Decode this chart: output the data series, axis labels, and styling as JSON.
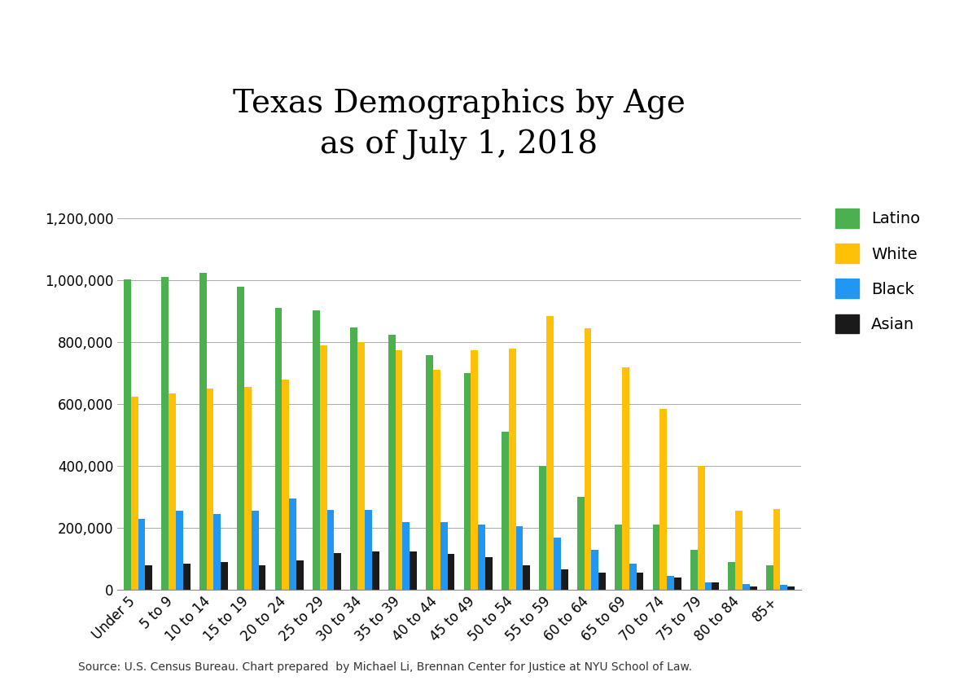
{
  "title": "Texas Demographics by Age\nas of July 1, 2018",
  "source_text": "Source: U.S. Census Bureau. Chart prepared  by Michael Li, Brennan Center for Justice at NYU School of Law.",
  "categories": [
    "Under 5",
    "5 to 9",
    "10 to 14",
    "15 to 19",
    "20 to 24",
    "25 to 29",
    "30 to 34",
    "35 to 39",
    "40 to 44",
    "45 to 49",
    "50 to 54",
    "55 to 59",
    "60 to 64",
    "65 to 69",
    "70 to 74",
    "75 to 79",
    "80 to 84",
    "85+"
  ],
  "series": {
    "Latino": [
      1002000,
      1012000,
      1025000,
      980000,
      910000,
      903000,
      848000,
      825000,
      758000,
      700000,
      510000,
      400000,
      300000,
      210000,
      210000,
      130000,
      90000,
      80000
    ],
    "White": [
      625000,
      635000,
      650000,
      655000,
      680000,
      790000,
      800000,
      775000,
      710000,
      775000,
      780000,
      885000,
      845000,
      720000,
      585000,
      400000,
      255000,
      260000
    ],
    "Black": [
      230000,
      255000,
      245000,
      255000,
      295000,
      258000,
      258000,
      220000,
      220000,
      210000,
      205000,
      170000,
      130000,
      85000,
      45000,
      25000,
      20000,
      15000
    ],
    "Asian": [
      80000,
      85000,
      90000,
      80000,
      95000,
      120000,
      125000,
      125000,
      115000,
      105000,
      80000,
      65000,
      55000,
      55000,
      40000,
      25000,
      10000,
      10000
    ]
  },
  "colors": {
    "Latino": "#4CAF50",
    "White": "#FFC107",
    "Black": "#2196F3",
    "Asian": "#1a1a1a"
  },
  "ylim": [
    0,
    1300000
  ],
  "yticks": [
    0,
    200000,
    400000,
    600000,
    800000,
    1000000,
    1200000
  ],
  "background_color": "#ffffff",
  "bar_width": 0.19,
  "title_fontsize": 28,
  "tick_fontsize": 12,
  "legend_fontsize": 14,
  "source_fontsize": 10
}
